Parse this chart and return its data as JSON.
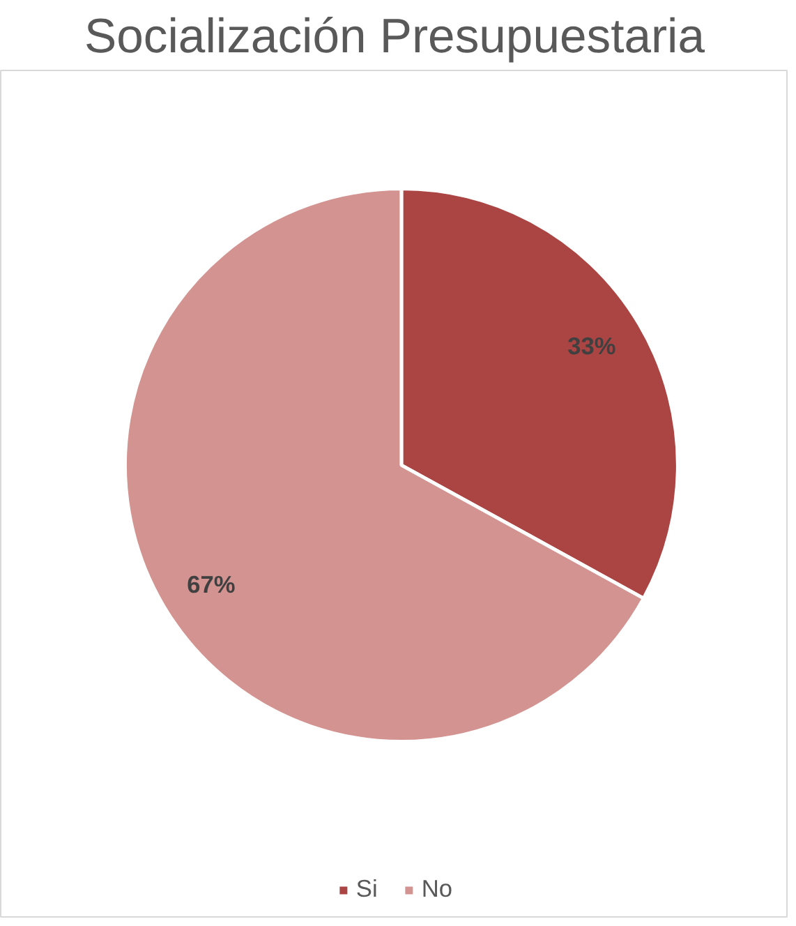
{
  "chart_data": {
    "type": "pie",
    "title": "Socialización Presupuestaria",
    "categories": [
      "Si",
      "No"
    ],
    "values": [
      33,
      67
    ],
    "colors": [
      "#ab4543",
      "#d39391"
    ],
    "value_labels": [
      "33%",
      "67%"
    ],
    "legend": "bottom"
  }
}
